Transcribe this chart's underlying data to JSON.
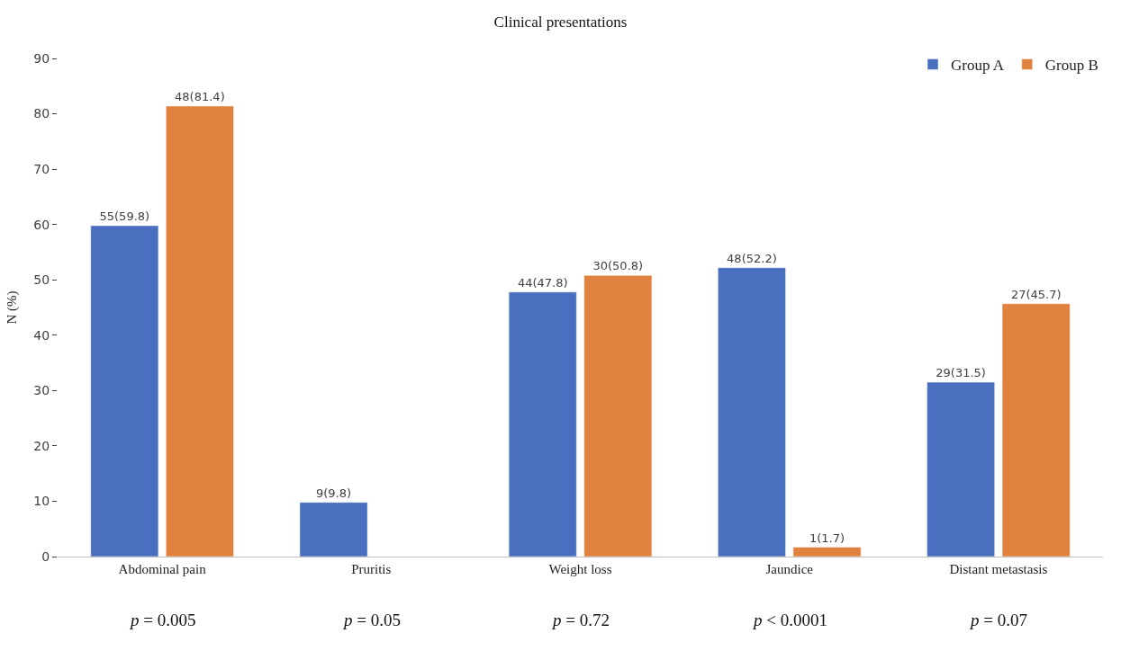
{
  "chart_data": {
    "type": "bar",
    "title": "Clinical presentations",
    "ylabel": "N (%)",
    "categories": [
      "Abdominal pain",
      "Pruritis",
      "Weight loss",
      "Jaundice",
      "Distant metastasis"
    ],
    "series": [
      {
        "name": "Group A",
        "color": "#4a6fbe",
        "values": [
          59.8,
          9.8,
          47.8,
          52.2,
          31.5
        ],
        "value_labels": [
          "55(59.8)",
          "9(9.8)",
          "44(47.8)",
          "48(52.2)",
          "29(31.5)"
        ]
      },
      {
        "name": "Group B",
        "color": "#e0823d",
        "values": [
          81.4,
          null,
          50.8,
          1.7,
          45.7
        ],
        "value_labels": [
          "48(81.4)",
          null,
          "30(50.8)",
          "1(1.7)",
          "27(45.7)"
        ]
      }
    ],
    "ylim": [
      0,
      90
    ],
    "yticks": [
      0,
      10,
      20,
      30,
      40,
      50,
      60,
      70,
      80,
      90
    ],
    "grid": false,
    "legend": "top right",
    "annotations": [
      "p = 0.005",
      "p = 0.05",
      "p = 0.72",
      "p < 0.0001",
      "p = 0.07"
    ]
  }
}
